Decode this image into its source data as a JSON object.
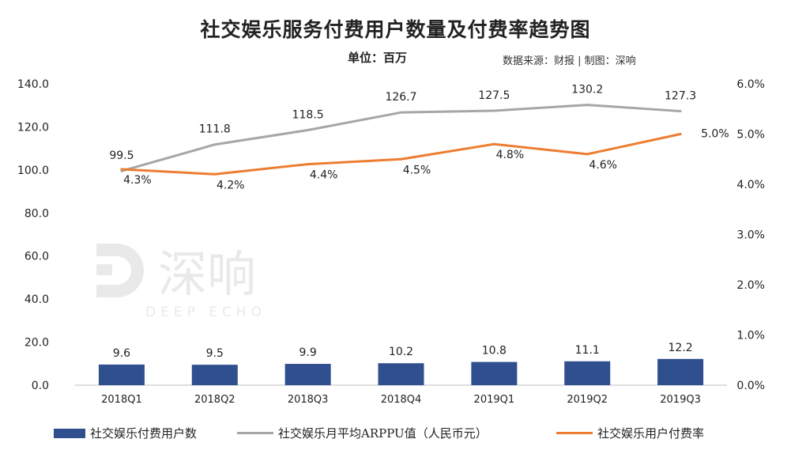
{
  "header": {
    "title": "社交娱乐服务付费用户数量及付费率趋势图",
    "unit": "单位：百万",
    "source": "数据来源：财报 | 制图：深响"
  },
  "watermark": {
    "brand": "深响",
    "subtitle": "DEEP ECHO"
  },
  "colors": {
    "bar": "#2f4f8f",
    "arppu": "#a6a6a6",
    "rate": "#ed7d31",
    "axis": "#bfbfbf"
  },
  "chart_data": {
    "type": "bar",
    "categories": [
      "2018Q1",
      "2018Q2",
      "2018Q3",
      "2018Q4",
      "2019Q1",
      "2019Q2",
      "2019Q3"
    ],
    "left_axis": {
      "ylim": [
        0,
        140
      ],
      "ticks": [
        "0.0",
        "20.0",
        "40.0",
        "60.0",
        "80.0",
        "100.0",
        "120.0",
        "140.0"
      ]
    },
    "right_axis": {
      "ylim": [
        0,
        6
      ],
      "ticks": [
        "0.0%",
        "1.0%",
        "2.0%",
        "3.0%",
        "4.0%",
        "5.0%",
        "6.0%"
      ]
    },
    "series": [
      {
        "name": "社交娱乐付费用户数",
        "type": "bar",
        "axis": "left",
        "values": [
          9.6,
          9.5,
          9.9,
          10.2,
          10.8,
          11.1,
          12.2
        ],
        "labels": [
          "9.6",
          "9.5",
          "9.9",
          "10.2",
          "10.8",
          "11.1",
          "12.2"
        ]
      },
      {
        "name": "社交娱乐月平均ARPPU值（人民币元）",
        "type": "line",
        "axis": "left",
        "values": [
          99.5,
          111.8,
          118.5,
          126.7,
          127.5,
          130.2,
          127.3
        ],
        "labels": [
          "99.5",
          "111.8",
          "118.5",
          "126.7",
          "127.5",
          "130.2",
          "127.3"
        ]
      },
      {
        "name": "社交娱乐用户付费率",
        "type": "line",
        "axis": "right",
        "values": [
          4.3,
          4.2,
          4.4,
          4.5,
          4.8,
          4.6,
          5.0
        ],
        "labels": [
          "4.3%",
          "4.2%",
          "4.4%",
          "4.5%",
          "4.8%",
          "4.6%",
          "5.0%"
        ]
      }
    ],
    "legend": "bottom"
  }
}
